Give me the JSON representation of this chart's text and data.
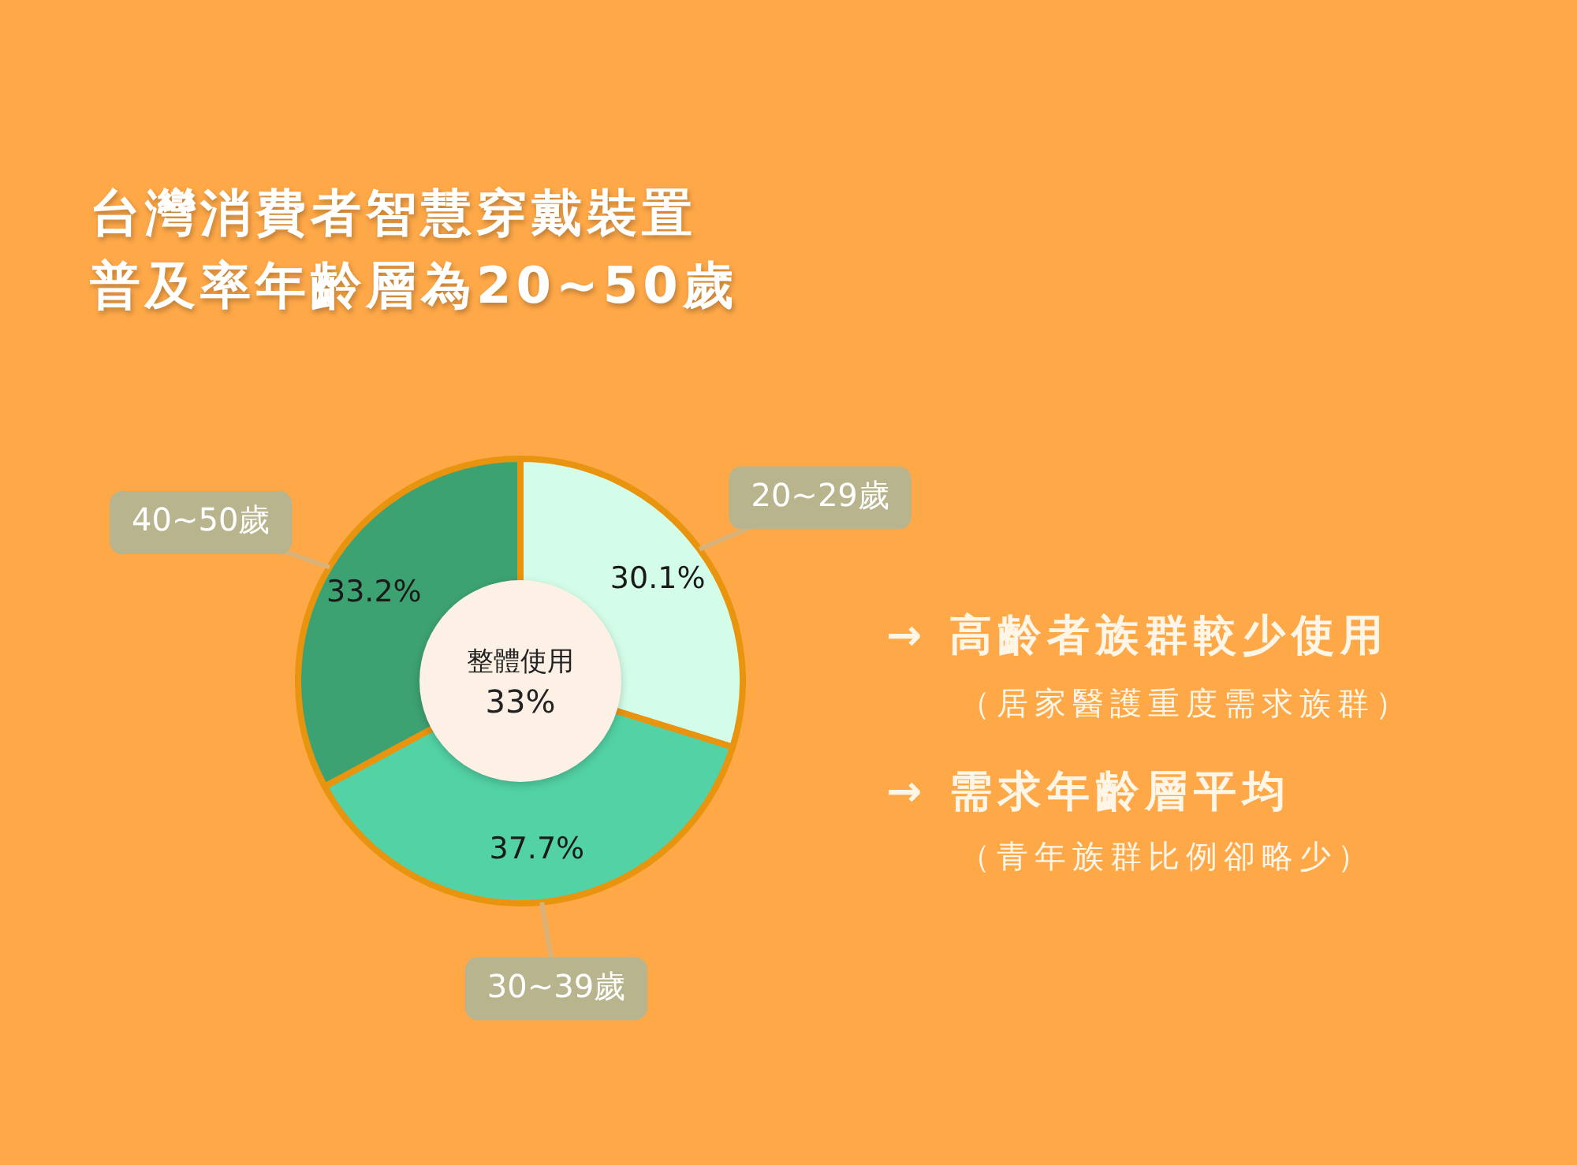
{
  "chart_data": {
    "type": "donut",
    "title": "台灣消費者智慧穿戴裝置普及率年齡層為20~50歲",
    "categories": [
      "20~29歲",
      "30~39歲",
      "40~50歲"
    ],
    "values": [
      30.1,
      37.7,
      33.2
    ],
    "colors": [
      "#d4fde9",
      "#53d3a5",
      "#3da272"
    ],
    "value_labels": [
      "30.1%",
      "37.7%",
      "33.2%"
    ],
    "legend": false,
    "annotations": [
      "整體使用",
      "33%",
      "→ 高齡者族群較少使用",
      "（居家醫護重度需求族群）",
      "→ 需求年齡層平均",
      "（青年族群比例卻略少）"
    ]
  }
}
